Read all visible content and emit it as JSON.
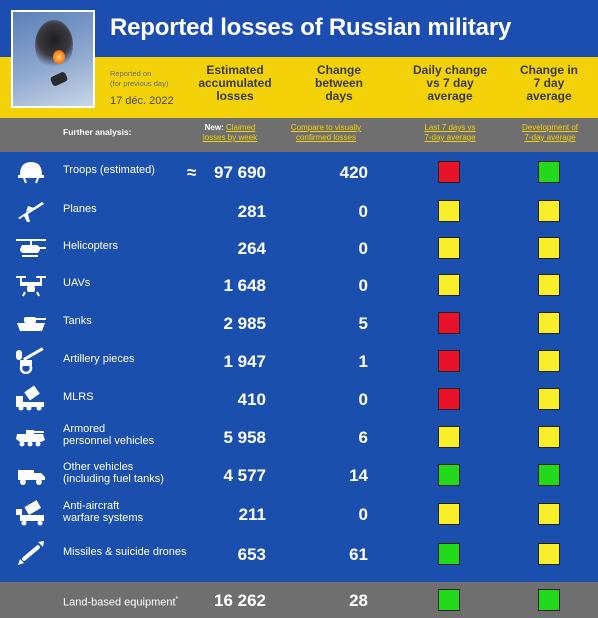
{
  "header": {
    "title": "Reported losses of Russian military",
    "reported_on_line1": "Reported on",
    "reported_on_line2": "(for previous day)",
    "date": "17 déc. 2022",
    "columns": {
      "estimated_line1": "Estimated",
      "estimated_line2": "accumulated",
      "estimated_line3": "losses",
      "change_line1": "Change",
      "change_line2": "between",
      "change_line3": "days",
      "daily_line1": "Daily change",
      "daily_line2": "vs 7 day",
      "daily_line3": "average",
      "change7_line1": "Change in",
      "change7_line2": "7 day",
      "change7_line3": "average"
    }
  },
  "subheader": {
    "further": "Further analysis:",
    "new_prefix": "New:",
    "claimed_line1": "Claimed",
    "claimed_line2": "losses by week",
    "compare_line1": "Compare to visually",
    "compare_line2": "confirmed losses",
    "last7_line1": "Last 7 days vs",
    "last7_line2": "7-day average",
    "dev_line1": "Development of",
    "dev_line2": "7-day average"
  },
  "approx_symbol": "≈",
  "rows": [
    {
      "icon": "helmet-icon",
      "label1": "Troops (estimated)",
      "label2": "",
      "total": "97 690",
      "change": "420",
      "daily": "#e8122a",
      "avg7": "#22d91c"
    },
    {
      "icon": "plane-icon",
      "label1": "Planes",
      "label2": "",
      "total": "281",
      "change": "0",
      "daily": "#f9ee2a",
      "avg7": "#f9ee2a"
    },
    {
      "icon": "helicopter-icon",
      "label1": "Helicopters",
      "label2": "",
      "total": "264",
      "change": "0",
      "daily": "#f9ee2a",
      "avg7": "#f9ee2a"
    },
    {
      "icon": "drone-icon",
      "label1": "UAVs",
      "label2": "",
      "total": "1 648",
      "change": "0",
      "daily": "#f9ee2a",
      "avg7": "#f9ee2a"
    },
    {
      "icon": "tank-icon",
      "label1": "Tanks",
      "label2": "",
      "total": "2 985",
      "change": "5",
      "daily": "#e8122a",
      "avg7": "#f9ee2a"
    },
    {
      "icon": "artillery-icon",
      "label1": "Artillery pieces",
      "label2": "",
      "total": "1 947",
      "change": "1",
      "daily": "#e8122a",
      "avg7": "#f9ee2a"
    },
    {
      "icon": "mlrs-icon",
      "label1": "MLRS",
      "label2": "",
      "total": "410",
      "change": "0",
      "daily": "#e8122a",
      "avg7": "#f9ee2a"
    },
    {
      "icon": "apc-icon",
      "label1": "Armored",
      "label2": "personnel vehicles",
      "total": "5 958",
      "change": "6",
      "daily": "#f9ee2a",
      "avg7": "#f9ee2a"
    },
    {
      "icon": "vehicle-icon",
      "label1": "Other vehicles",
      "label2": "(including fuel tanks)",
      "total": "4 577",
      "change": "14",
      "daily": "#22d91c",
      "avg7": "#22d91c"
    },
    {
      "icon": "anti-aircraft-icon",
      "label1": "Anti-aircraft",
      "label2": "warfare systems",
      "total": "211",
      "change": "0",
      "daily": "#f9ee2a",
      "avg7": "#f9ee2a"
    },
    {
      "icon": "missile-icon",
      "label1": "Missiles & suicide drones",
      "label2": "",
      "total": "653",
      "change": "61",
      "daily": "#22d91c",
      "avg7": "#f9ee2a"
    }
  ],
  "footer": {
    "label": "Land-based equipment",
    "footnote_mark": "*",
    "total": "16 262",
    "change": "28",
    "daily": "#22d91c",
    "avg7": "#22d91c"
  }
}
